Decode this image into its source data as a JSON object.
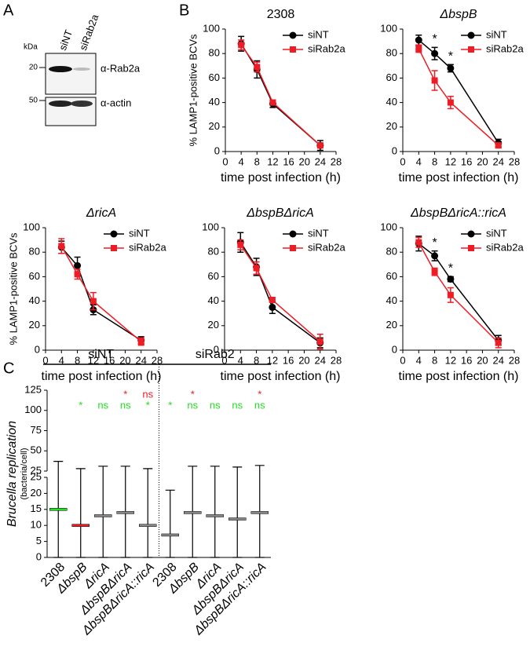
{
  "panel_labels": [
    "A",
    "B",
    "C"
  ],
  "blot": {
    "unit": "kDa",
    "lanes": [
      "siNT",
      "siRab2a"
    ],
    "markers": [
      "20",
      "50"
    ],
    "antibodies": [
      "α-Rab2a",
      "α-actin"
    ]
  },
  "chart_data": [
    {
      "type": "line",
      "title": "2308",
      "ylabel": "% LAMP1-positive BCVs",
      "xlabel": "time post infection (h)",
      "x": [
        4,
        8,
        12,
        24
      ],
      "xlim": [
        0,
        28
      ],
      "xticks": [
        0,
        4,
        8,
        12,
        16,
        20,
        24,
        28
      ],
      "ylim": [
        0,
        100
      ],
      "yticks": [
        0,
        20,
        40,
        60,
        80,
        100
      ],
      "legend": "upper right",
      "series": [
        {
          "name": "siNT",
          "color": "#000000",
          "marker": "circle",
          "values": [
            88,
            67,
            39,
            5
          ],
          "errors": [
            6,
            7,
            3,
            4
          ]
        },
        {
          "name": "siRab2a",
          "color": "#ee1c24",
          "marker": "square",
          "values": [
            87,
            69,
            40,
            5
          ],
          "errors": [
            4,
            4,
            2,
            2
          ]
        }
      ],
      "annotations": []
    },
    {
      "type": "line",
      "title": "ΔbspB",
      "xlabel": "time post infection (h)",
      "x": [
        4,
        8,
        12,
        24
      ],
      "xlim": [
        0,
        28
      ],
      "xticks": [
        0,
        4,
        8,
        12,
        16,
        20,
        24,
        28
      ],
      "ylim": [
        0,
        100
      ],
      "yticks": [
        0,
        20,
        40,
        60,
        80,
        100
      ],
      "legend": "upper right",
      "series": [
        {
          "name": "siNT",
          "color": "#000000",
          "marker": "circle",
          "values": [
            91,
            80,
            68,
            7
          ],
          "errors": [
            4,
            5,
            3,
            3
          ]
        },
        {
          "name": "siRab2a",
          "color": "#ee1c24",
          "marker": "square",
          "values": [
            84,
            58,
            40,
            5
          ],
          "errors": [
            3,
            8,
            5,
            2
          ]
        }
      ],
      "annotations": [
        {
          "text": "*",
          "x": 8
        },
        {
          "text": "*",
          "x": 12
        }
      ]
    },
    {
      "type": "line",
      "title": "ΔricA",
      "ylabel": "% LAMP1-positive BCVs",
      "xlabel": "time post infection (h)",
      "x": [
        4,
        8,
        12,
        24
      ],
      "xlim": [
        0,
        28
      ],
      "xticks": [
        0,
        4,
        8,
        12,
        16,
        20,
        24,
        28
      ],
      "ylim": [
        0,
        100
      ],
      "yticks": [
        0,
        20,
        40,
        60,
        80,
        100
      ],
      "legend": "upper right",
      "series": [
        {
          "name": "siNT",
          "color": "#000000",
          "marker": "circle",
          "values": [
            84,
            69,
            33,
            8
          ],
          "errors": [
            5,
            7,
            4,
            3
          ]
        },
        {
          "name": "siRab2a",
          "color": "#ee1c24",
          "marker": "square",
          "values": [
            85,
            62,
            40,
            7
          ],
          "errors": [
            6,
            4,
            7,
            3
          ]
        }
      ],
      "annotations": []
    },
    {
      "type": "line",
      "title": "ΔbspBΔricA",
      "xlabel": "time post infection (h)",
      "x": [
        4,
        8,
        12,
        24
      ],
      "xlim": [
        0,
        28
      ],
      "xticks": [
        0,
        4,
        8,
        12,
        16,
        20,
        24,
        28
      ],
      "ylim": [
        0,
        100
      ],
      "yticks": [
        0,
        20,
        40,
        60,
        80,
        100
      ],
      "legend": "upper right",
      "series": [
        {
          "name": "siNT",
          "color": "#000000",
          "marker": "circle",
          "values": [
            88,
            68,
            35,
            6
          ],
          "errors": [
            8,
            7,
            5,
            4
          ]
        },
        {
          "name": "siRab2a",
          "color": "#ee1c24",
          "marker": "square",
          "values": [
            86,
            67,
            41,
            7
          ],
          "errors": [
            4,
            5,
            2,
            6
          ]
        }
      ],
      "annotations": []
    },
    {
      "type": "line",
      "title": "ΔbspBΔricA::ricA",
      "xlabel": "time post infection (h)",
      "x": [
        4,
        8,
        12,
        24
      ],
      "xlim": [
        0,
        28
      ],
      "xticks": [
        0,
        4,
        8,
        12,
        16,
        20,
        24,
        28
      ],
      "ylim": [
        0,
        100
      ],
      "yticks": [
        0,
        20,
        40,
        60,
        80,
        100
      ],
      "legend": "upper right",
      "series": [
        {
          "name": "siNT",
          "color": "#000000",
          "marker": "circle",
          "values": [
            87,
            77,
            58,
            8
          ],
          "errors": [
            6,
            4,
            2,
            4
          ]
        },
        {
          "name": "siRab2a",
          "color": "#ee1c24",
          "marker": "square",
          "values": [
            88,
            64,
            45,
            6
          ],
          "errors": [
            4,
            3,
            6,
            4
          ]
        }
      ],
      "annotations": [
        {
          "text": "*",
          "x": 8
        },
        {
          "text": "*",
          "x": 12
        }
      ]
    },
    {
      "type": "dot",
      "ylabel": [
        "Brucella replication",
        "(bacteria/cell)"
      ],
      "group_labels": [
        "siNT",
        "siRab2"
      ],
      "categories": [
        "2308",
        "ΔbspB",
        "ΔricA",
        "ΔbspBΔricA",
        "ΔbspBΔricA::ricA",
        "2308",
        "ΔbspB",
        "ΔricA",
        "ΔbspBΔricA",
        "ΔbspBΔricA::ricA"
      ],
      "colors": [
        "#22dd22",
        "#ee1c24",
        "#888888",
        "#888888",
        "#888888",
        "#888888",
        "#888888",
        "#888888",
        "#888888",
        "#888888"
      ],
      "means": [
        15,
        10,
        13,
        14,
        10,
        7,
        14,
        13,
        12,
        14
      ],
      "sd": [
        22,
        18,
        18,
        17,
        18,
        14,
        17,
        18,
        18,
        18
      ],
      "ylim_lower": [
        0,
        25
      ],
      "yticks_lower": [
        0,
        5,
        10,
        15,
        20,
        25
      ],
      "ylim_upper": [
        25,
        125
      ],
      "yticks_upper": [
        25,
        50,
        75,
        100,
        125
      ],
      "annotations_green": [
        null,
        "*",
        "ns",
        "ns",
        "*",
        "*",
        "ns",
        "ns",
        "ns",
        "ns"
      ],
      "green": "#22dd22",
      "annotations_red": [
        null,
        null,
        null,
        "*",
        "ns",
        null,
        "*",
        null,
        null,
        "*"
      ],
      "red": "#ee1c24"
    }
  ]
}
